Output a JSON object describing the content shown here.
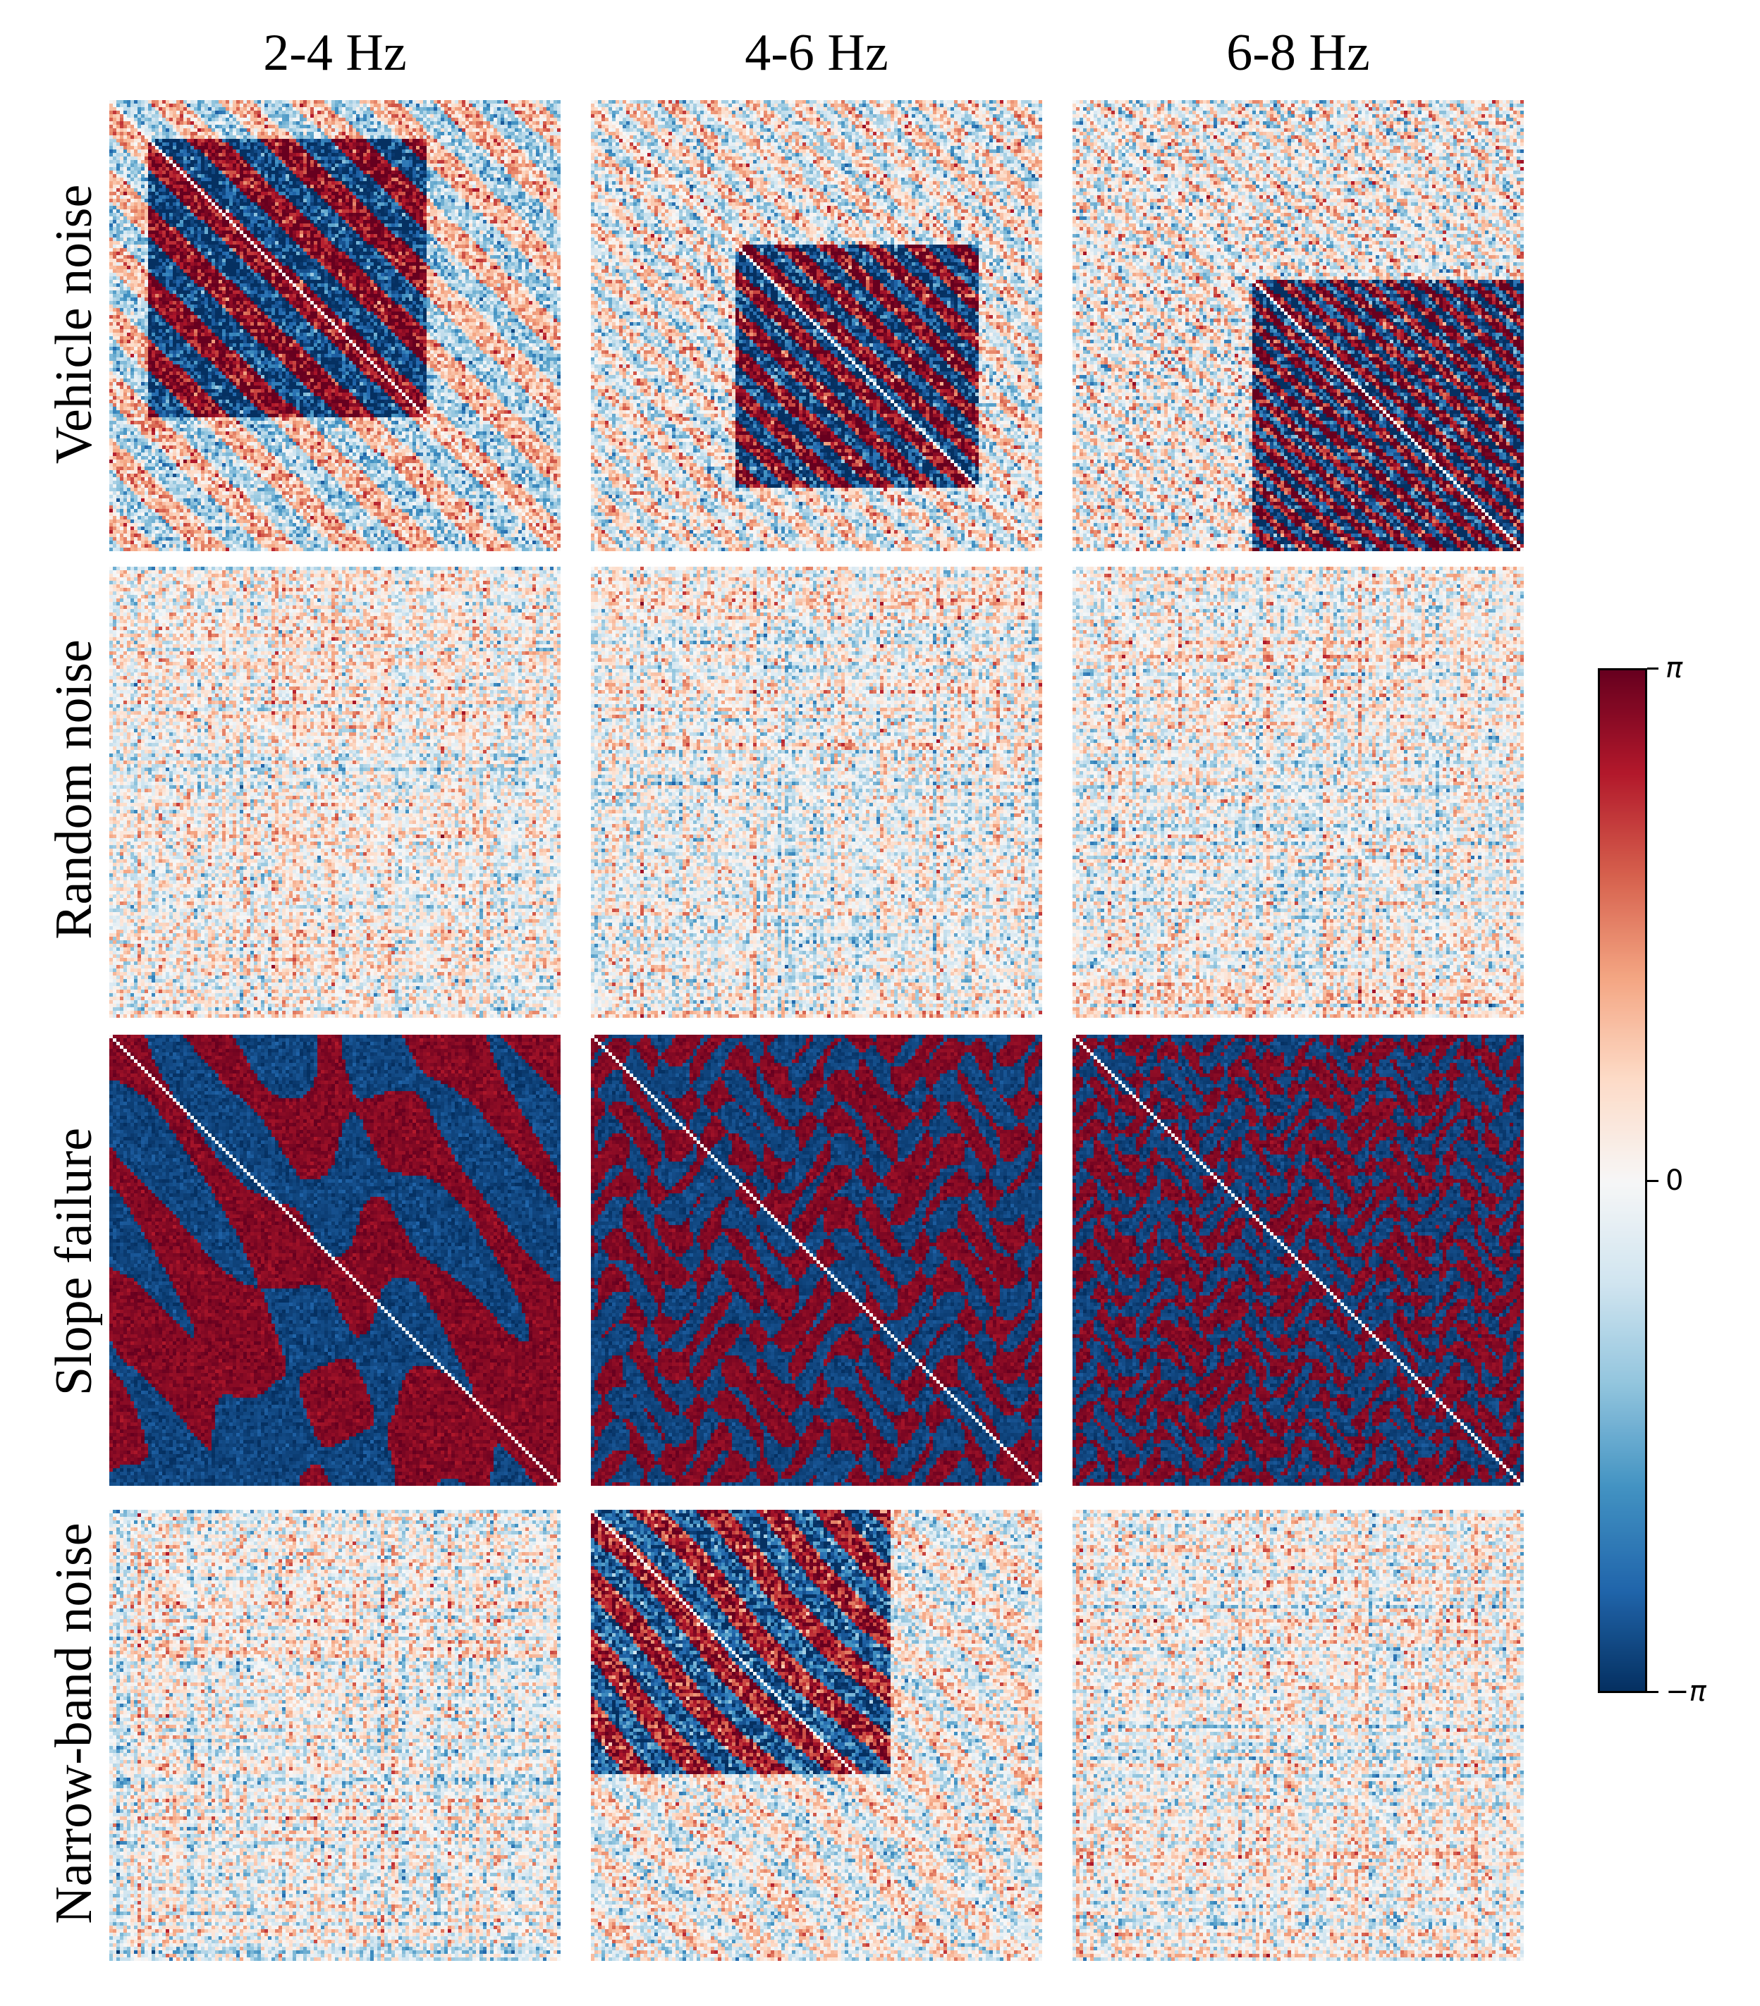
{
  "chart_data": {
    "type": "heatmap",
    "title": "",
    "columns": [
      "2-4 Hz",
      "4-6 Hz",
      "6-8 Hz"
    ],
    "rows": [
      "Vehicle noise",
      "Random noise",
      "Slope failure",
      "Narrow-band noise"
    ],
    "value_range": [
      -3.14159,
      3.14159
    ],
    "colormap": "RdBu_r",
    "colorbar": {
      "ticks": [
        3.14159,
        0,
        -3.14159
      ],
      "tick_labels": [
        "π",
        "0",
        "−π"
      ],
      "placement": "right"
    },
    "matrix_size": [
      128,
      128
    ],
    "panels": [
      {
        "row": "Vehicle noise",
        "column": "2-4 Hz",
        "pattern": "diagonal bands, high coherence"
      },
      {
        "row": "Vehicle noise",
        "column": "4-6 Hz",
        "pattern": "diagonal bands, mid coherence"
      },
      {
        "row": "Vehicle noise",
        "column": "6-8 Hz",
        "pattern": "diagonal bands, lower-right coherence"
      },
      {
        "row": "Random noise",
        "column": "2-4 Hz",
        "pattern": "incoherent noise"
      },
      {
        "row": "Random noise",
        "column": "4-6 Hz",
        "pattern": "incoherent noise"
      },
      {
        "row": "Random noise",
        "column": "6-8 Hz",
        "pattern": "incoherent noise"
      },
      {
        "row": "Slope failure",
        "column": "2-4 Hz",
        "pattern": "large saturated blocks"
      },
      {
        "row": "Slope failure",
        "column": "4-6 Hz",
        "pattern": "saturated blobs"
      },
      {
        "row": "Slope failure",
        "column": "6-8 Hz",
        "pattern": "saturated fine blobs"
      },
      {
        "row": "Narrow-band noise",
        "column": "2-4 Hz",
        "pattern": "incoherent noise"
      },
      {
        "row": "Narrow-band noise",
        "column": "4-6 Hz",
        "pattern": "upper-left diagonal bands"
      },
      {
        "row": "Narrow-band noise",
        "column": "6-8 Hz",
        "pattern": "incoherent noise"
      }
    ]
  }
}
